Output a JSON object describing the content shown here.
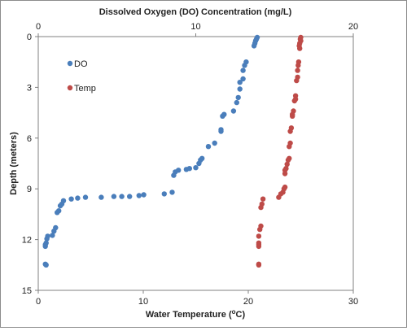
{
  "chart_data": {
    "type": "scatter",
    "top_axis": {
      "label": "Dissolved Oxygen (DO) Concentration (mg/L)",
      "range": [
        0,
        20
      ],
      "ticks": [
        "0",
        "10",
        "20"
      ]
    },
    "bottom_axis": {
      "label": "Water Temperature (",
      "label_superscript": "o",
      "label_suffix": "C)",
      "range": [
        0,
        30
      ],
      "ticks": [
        "0",
        "10",
        "20",
        "30"
      ]
    },
    "y_axis": {
      "label": "Depth (meters)",
      "range": [
        0,
        15
      ],
      "inverted": true,
      "ticks": [
        "0",
        "3",
        "6",
        "9",
        "12",
        "15"
      ]
    },
    "grid": false,
    "legend": {
      "placement": "top-left",
      "entries": [
        {
          "name": "DO",
          "color": "#4a7ebb"
        },
        {
          "name": "Temp",
          "color": "#be4b48"
        }
      ]
    },
    "series": [
      {
        "name": "DO",
        "color": "#4a7ebb",
        "x_axis": "top",
        "points": [
          [
            13.9,
            0.05
          ],
          [
            13.85,
            0.15
          ],
          [
            13.8,
            0.25
          ],
          [
            13.75,
            0.4
          ],
          [
            13.7,
            0.55
          ],
          [
            13.2,
            1.5
          ],
          [
            13.1,
            1.7
          ],
          [
            13.0,
            2.0
          ],
          [
            13.0,
            2.5
          ],
          [
            12.8,
            2.7
          ],
          [
            12.8,
            3.1
          ],
          [
            12.7,
            3.6
          ],
          [
            12.6,
            3.9
          ],
          [
            12.4,
            4.4
          ],
          [
            11.8,
            4.6
          ],
          [
            11.7,
            4.7
          ],
          [
            11.6,
            5.5
          ],
          [
            11.6,
            5.6
          ],
          [
            11.2,
            6.3
          ],
          [
            10.8,
            6.5
          ],
          [
            10.4,
            7.2
          ],
          [
            10.3,
            7.3
          ],
          [
            10.2,
            7.5
          ],
          [
            10.0,
            7.75
          ],
          [
            9.6,
            7.8
          ],
          [
            9.4,
            7.85
          ],
          [
            8.9,
            7.9
          ],
          [
            8.7,
            8.0
          ],
          [
            8.6,
            8.2
          ],
          [
            8.5,
            9.2
          ],
          [
            8.0,
            9.3
          ],
          [
            6.7,
            9.35
          ],
          [
            6.4,
            9.4
          ],
          [
            5.8,
            9.45
          ],
          [
            5.3,
            9.45
          ],
          [
            4.8,
            9.45
          ],
          [
            4.0,
            9.5
          ],
          [
            3.0,
            9.5
          ],
          [
            2.5,
            9.55
          ],
          [
            2.1,
            9.6
          ],
          [
            1.6,
            9.7
          ],
          [
            1.5,
            9.9
          ],
          [
            1.4,
            10.0
          ],
          [
            1.3,
            10.3
          ],
          [
            1.2,
            10.4
          ],
          [
            1.1,
            11.3
          ],
          [
            1.0,
            11.5
          ],
          [
            0.9,
            11.75
          ],
          [
            0.6,
            11.8
          ],
          [
            0.55,
            11.95
          ],
          [
            0.5,
            12.2
          ],
          [
            0.45,
            12.3
          ],
          [
            0.45,
            12.4
          ],
          [
            0.45,
            13.45
          ],
          [
            0.5,
            13.5
          ]
        ]
      },
      {
        "name": "Temp",
        "color": "#be4b48",
        "x_axis": "bottom",
        "points": [
          [
            25.0,
            0.05
          ],
          [
            24.95,
            0.15
          ],
          [
            25.0,
            0.25
          ],
          [
            24.9,
            0.4
          ],
          [
            24.85,
            0.55
          ],
          [
            24.9,
            0.7
          ],
          [
            24.8,
            1.5
          ],
          [
            24.75,
            1.7
          ],
          [
            24.7,
            2.0
          ],
          [
            24.7,
            2.4
          ],
          [
            24.6,
            2.6
          ],
          [
            24.5,
            3.5
          ],
          [
            24.5,
            3.7
          ],
          [
            24.4,
            3.8
          ],
          [
            24.3,
            4.4
          ],
          [
            24.2,
            4.6
          ],
          [
            24.2,
            4.7
          ],
          [
            24.1,
            5.4
          ],
          [
            24.0,
            5.6
          ],
          [
            24.0,
            6.3
          ],
          [
            23.9,
            6.5
          ],
          [
            23.9,
            7.2
          ],
          [
            23.8,
            7.3
          ],
          [
            23.7,
            7.55
          ],
          [
            23.6,
            7.8
          ],
          [
            23.5,
            7.9
          ],
          [
            23.5,
            8.1
          ],
          [
            23.5,
            8.9
          ],
          [
            23.4,
            9.0
          ],
          [
            23.3,
            9.2
          ],
          [
            23.1,
            9.3
          ],
          [
            22.9,
            9.5
          ],
          [
            21.4,
            9.6
          ],
          [
            21.3,
            9.9
          ],
          [
            21.2,
            10.1
          ],
          [
            21.2,
            11.2
          ],
          [
            21.1,
            11.4
          ],
          [
            21.0,
            11.8
          ],
          [
            21.0,
            12.2
          ],
          [
            21.0,
            12.3
          ],
          [
            21.0,
            12.4
          ],
          [
            21.0,
            13.45
          ],
          [
            21.0,
            13.5
          ]
        ]
      }
    ]
  }
}
